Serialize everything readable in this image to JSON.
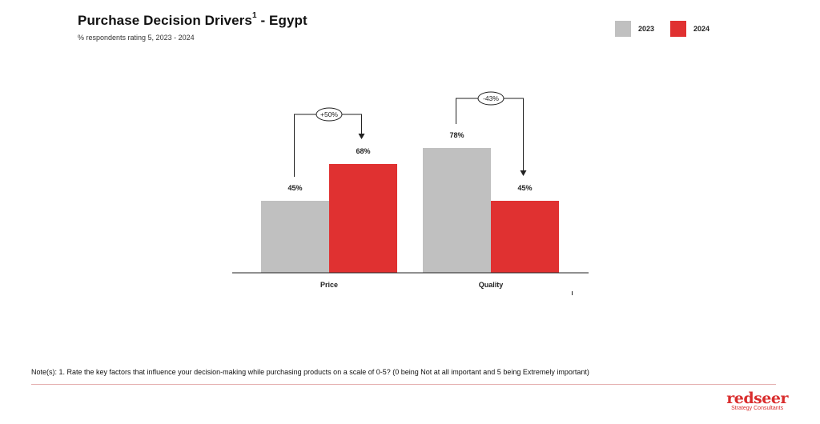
{
  "header": {
    "title": "Purchase Decision Drivers",
    "title_superscript": "1",
    "title_suffix": " - Egypt",
    "subtitle": "% respondents rating 5, 2023 - 2024"
  },
  "chart_data": {
    "type": "bar",
    "categories": [
      "Price",
      "Quality"
    ],
    "series": [
      {
        "name": "2023",
        "values": [
          45,
          78
        ],
        "labels": [
          "45%",
          "78%"
        ],
        "color": "#c0c0c0"
      },
      {
        "name": "2024",
        "values": [
          68,
          45
        ],
        "labels": [
          "68%",
          "45%"
        ],
        "color": "#e03131"
      }
    ],
    "ylim": [
      0,
      100
    ],
    "grid": false,
    "legend": "top-right",
    "annotations": [
      {
        "category": "Price",
        "from_series": "2023",
        "to_series": "2024",
        "text": "+50%"
      },
      {
        "category": "Quality",
        "from_series": "2023",
        "to_series": "2024",
        "text": "-43%"
      }
    ]
  },
  "footer": {
    "note": "Note(s): 1. Rate the key factors that influence your decision-making while purchasing products on a scale of 0-5? (0 being Not at all important and 5 being Extremely important)",
    "logo_word": "redseer",
    "logo_sub": "Strategy Consultants"
  }
}
